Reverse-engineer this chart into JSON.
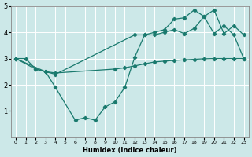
{
  "xlabel": "Humidex (Indice chaleur)",
  "xlim": [
    -0.5,
    23.5
  ],
  "ylim": [
    0,
    5
  ],
  "xticks": [
    0,
    1,
    2,
    3,
    4,
    5,
    6,
    7,
    8,
    9,
    10,
    11,
    12,
    13,
    14,
    15,
    16,
    17,
    18,
    19,
    20,
    21,
    22,
    23
  ],
  "yticks": [
    1,
    2,
    3,
    4,
    5
  ],
  "bg_color": "#cce8e8",
  "line_color": "#1a7a6e",
  "line1_x": [
    0,
    1,
    2,
    3,
    4,
    6,
    7,
    8,
    9,
    10,
    11,
    12,
    13,
    14,
    15,
    16,
    17,
    18,
    19,
    20,
    21,
    22,
    23
  ],
  "line1_y": [
    3.0,
    3.0,
    2.6,
    2.5,
    1.9,
    0.65,
    0.75,
    0.65,
    1.15,
    1.35,
    1.9,
    3.05,
    3.9,
    3.9,
    4.0,
    4.1,
    3.95,
    4.15,
    4.6,
    4.85,
    3.95,
    4.25,
    3.9
  ],
  "line2_x": [
    0,
    2,
    3,
    4,
    10,
    11,
    12,
    13,
    14,
    15,
    16,
    17,
    18,
    19,
    20,
    21,
    22,
    23
  ],
  "line2_y": [
    3.0,
    2.6,
    2.5,
    2.45,
    2.6,
    2.65,
    2.72,
    2.8,
    2.87,
    2.9,
    2.93,
    2.95,
    2.97,
    2.99,
    3.0,
    3.0,
    3.0,
    3.0
  ],
  "line3_x": [
    0,
    3,
    4,
    12,
    13,
    14,
    15,
    16,
    17,
    18,
    19,
    20,
    21,
    22,
    23
  ],
  "line3_y": [
    3.0,
    2.5,
    2.4,
    3.9,
    3.9,
    4.0,
    4.1,
    4.5,
    4.55,
    4.85,
    4.6,
    3.95,
    4.25,
    3.9,
    3.0
  ]
}
